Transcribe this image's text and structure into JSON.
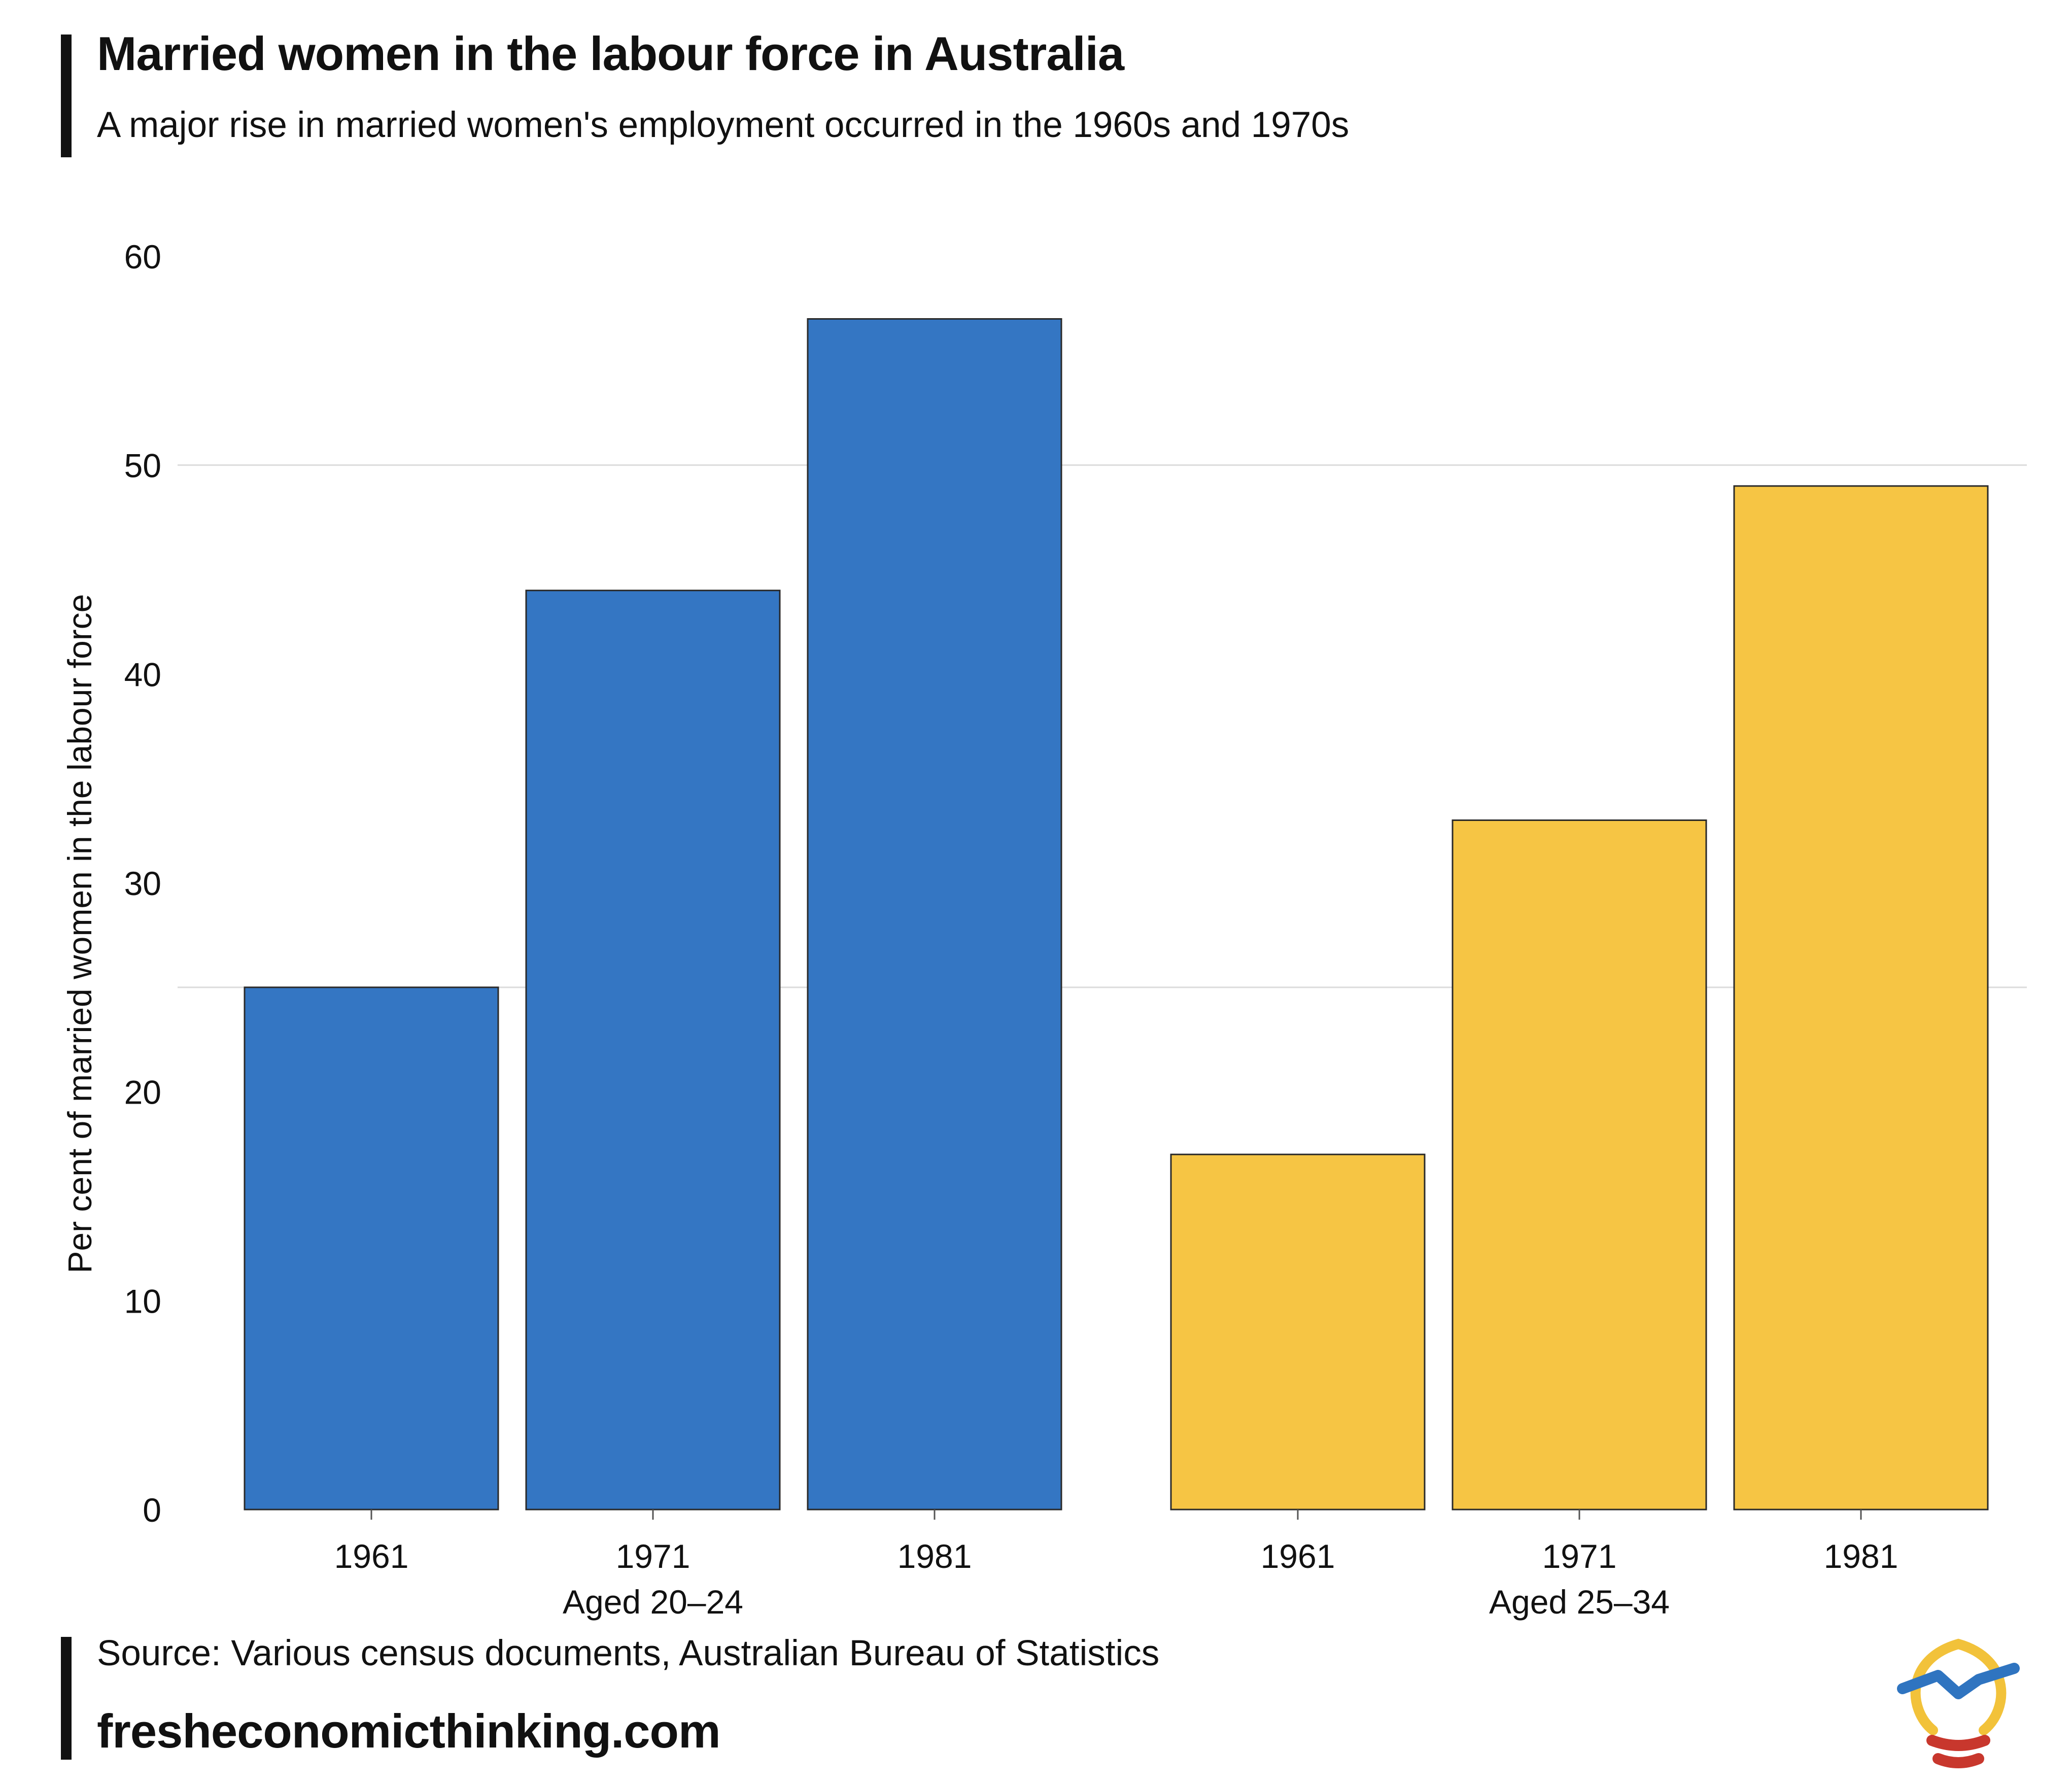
{
  "header": {
    "title": "Married women in the labour force in Australia",
    "subtitle": "A major rise in married women's employment occurred in the 1960s and 1970s"
  },
  "footer": {
    "source": "Source: Various census documents, Australian Bureau of Statistics",
    "site": "fresheconomicthinking.com"
  },
  "colors": {
    "series_20_24": "#3476c3",
    "series_25_34": "#f6c544",
    "outline": "#2a2a2a",
    "grid": "#dcdcdc",
    "logo_yellow": "#f2c23a",
    "logo_blue": "#2f74c0",
    "logo_red": "#c8372d"
  },
  "logo": {
    "icon": "lightbulb-icon"
  },
  "chart_data": {
    "type": "bar",
    "ylabel": "Per cent of married women in the labour force",
    "ylim": [
      0,
      60
    ],
    "yticks": [
      0,
      10,
      20,
      30,
      40,
      50,
      60
    ],
    "groups": [
      {
        "name": "Aged 20–24",
        "categories": [
          "1961",
          "1971",
          "1981"
        ],
        "values": [
          25,
          44,
          57
        ],
        "color_key": "series_20_24"
      },
      {
        "name": "Aged 25–34",
        "categories": [
          "1961",
          "1971",
          "1981"
        ],
        "values": [
          17,
          33,
          49
        ],
        "color_key": "series_25_34"
      }
    ],
    "gridlines": [
      25,
      50
    ]
  }
}
